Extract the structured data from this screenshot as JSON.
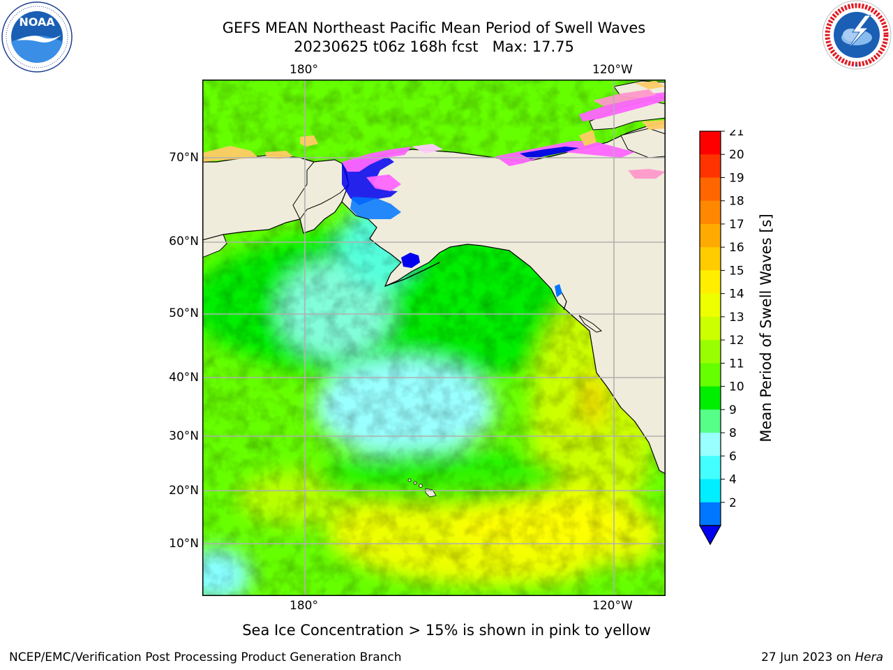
{
  "title": {
    "line1": "GEFS MEAN Northeast Pacific Mean Period of Swell Waves",
    "line2": "20230625 t06z 168h fcst   Max: 17.75"
  },
  "logos": {
    "left": "noaa-logo",
    "left_text": "NOAA",
    "right": "nws-logo"
  },
  "map": {
    "lon_ticks_top": [
      "180°",
      "120°W"
    ],
    "lon_ticks_bottom": [
      "180°",
      "120°W"
    ],
    "lat_ticks": [
      "70°N",
      "60°N",
      "50°N",
      "40°N",
      "30°N",
      "20°N",
      "10°N"
    ],
    "lon_range": [
      160,
      250
    ],
    "lat_range": [
      2,
      80
    ],
    "grid": true,
    "land_color": "#efecdb",
    "ocean_dominant_colors": [
      "#66ff00",
      "#00ee00",
      "#ccff00",
      "#ffff00",
      "#88ffff"
    ],
    "ice_colors": [
      "#ff66ff",
      "#ff99cc",
      "#ffcc66",
      "#ffff66"
    ]
  },
  "colorbar": {
    "label": "Mean Period of Swell Waves [s]",
    "ticks": [
      "21",
      "20",
      "19",
      "18",
      "17",
      "16",
      "15",
      "14",
      "13",
      "12",
      "11",
      "10",
      "9",
      "8",
      "6",
      "4",
      "2"
    ],
    "colors": [
      "#ff0000",
      "#ff3300",
      "#ff6600",
      "#ff8800",
      "#ffaa00",
      "#ffcc00",
      "#ffee00",
      "#eeff00",
      "#ccff00",
      "#99ff00",
      "#66ff00",
      "#00ee00",
      "#55ff88",
      "#99ffff",
      "#44ffff",
      "#00eeff",
      "#0077ff"
    ],
    "under_color": "#0000ee"
  },
  "ice_note": "Sea Ice Concentration > 15% is shown in pink to yellow",
  "footer": {
    "left": "NCEP/EMC/Verification Post Processing Product Generation Branch",
    "date": "27 Jun 2023 on ",
    "host": "Hera"
  }
}
